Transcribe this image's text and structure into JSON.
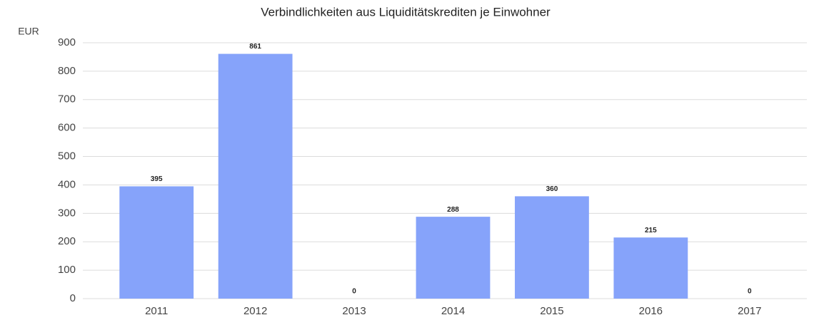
{
  "chart_data": {
    "type": "bar",
    "title": "Verbindlichkeiten aus Liquiditätskrediten je Einwohner",
    "y_label": "EUR",
    "categories": [
      "2011",
      "2012",
      "2013",
      "2014",
      "2015",
      "2016",
      "2017"
    ],
    "values": [
      395,
      861,
      0,
      288,
      360,
      215,
      0
    ],
    "color": "#86a3fa",
    "ylim": [
      0,
      900
    ],
    "yticks": [
      0,
      100,
      200,
      300,
      400,
      500,
      600,
      700,
      800,
      900
    ],
    "grid": true
  }
}
